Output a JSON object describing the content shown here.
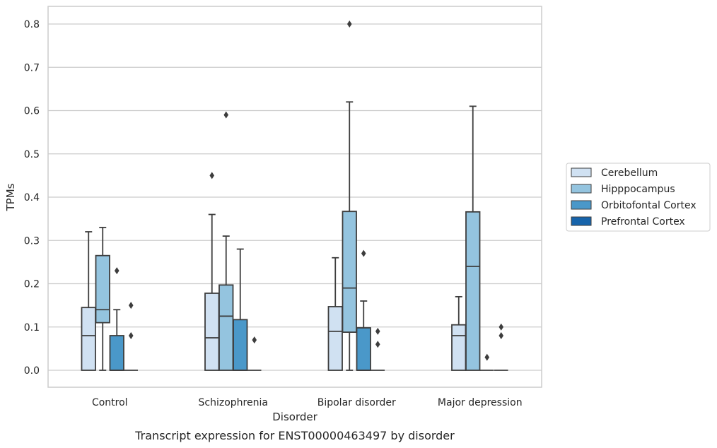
{
  "chart_data": {
    "type": "box",
    "title": "",
    "caption": "Transcript expression for ENST00000463497 by disorder",
    "xlabel": "Disorder",
    "ylabel": "TPMs",
    "ylim": [
      -0.04,
      0.84
    ],
    "yticks": [
      "0.0",
      "0.1",
      "0.2",
      "0.3",
      "0.4",
      "0.5",
      "0.6",
      "0.7",
      "0.8"
    ],
    "grid": "horizontal",
    "legend_position": "right",
    "categories": [
      "Control",
      "Schizophrenia",
      "Bipolar disorder",
      "Major depression"
    ],
    "series": [
      {
        "name": "Cerebellum",
        "color": "#d0e1f2",
        "boxes": [
          {
            "whisker_low": 0,
            "q1": 0,
            "median": 0.08,
            "q3": 0.145,
            "whisker_high": 0.32,
            "outliers": []
          },
          {
            "whisker_low": 0,
            "q1": 0,
            "median": 0.075,
            "q3": 0.178,
            "whisker_high": 0.36,
            "outliers": [
              0.45
            ]
          },
          {
            "whisker_low": 0,
            "q1": 0,
            "median": 0.09,
            "q3": 0.147,
            "whisker_high": 0.26,
            "outliers": []
          },
          {
            "whisker_low": 0,
            "q1": 0,
            "median": 0.08,
            "q3": 0.105,
            "whisker_high": 0.17,
            "outliers": []
          }
        ]
      },
      {
        "name": "Hipppocampus",
        "color": "#94c4df",
        "boxes": [
          {
            "whisker_low": 0,
            "q1": 0.11,
            "median": 0.14,
            "q3": 0.265,
            "whisker_high": 0.33,
            "outliers": []
          },
          {
            "whisker_low": 0,
            "q1": 0,
            "median": 0.125,
            "q3": 0.197,
            "whisker_high": 0.31,
            "outliers": [
              0.59
            ]
          },
          {
            "whisker_low": 0,
            "q1": 0.088,
            "median": 0.19,
            "q3": 0.367,
            "whisker_high": 0.62,
            "outliers": [
              0.8
            ]
          },
          {
            "whisker_low": 0,
            "q1": 0,
            "median": 0.24,
            "q3": 0.366,
            "whisker_high": 0.61,
            "outliers": []
          }
        ]
      },
      {
        "name": "Orbitofontal Cortex",
        "color": "#4a98c9",
        "boxes": [
          {
            "whisker_low": 0,
            "q1": 0,
            "median": 0,
            "q3": 0.08,
            "whisker_high": 0.14,
            "outliers": [
              0.23
            ]
          },
          {
            "whisker_low": 0,
            "q1": 0,
            "median": 0,
            "q3": 0.117,
            "whisker_high": 0.28,
            "outliers": []
          },
          {
            "whisker_low": 0,
            "q1": 0,
            "median": 0,
            "q3": 0.098,
            "whisker_high": 0.16,
            "outliers": [
              0.27
            ]
          },
          {
            "whisker_low": 0,
            "q1": 0,
            "median": 0,
            "q3": 0,
            "whisker_high": 0,
            "outliers": [
              0.03
            ]
          }
        ]
      },
      {
        "name": "Prefrontal Cortex",
        "color": "#1764ab",
        "boxes": [
          {
            "whisker_low": 0,
            "q1": 0,
            "median": 0,
            "q3": 0,
            "whisker_high": 0,
            "outliers": [
              0.08,
              0.15
            ]
          },
          {
            "whisker_low": 0,
            "q1": 0,
            "median": 0,
            "q3": 0,
            "whisker_high": 0,
            "outliers": [
              0.07
            ]
          },
          {
            "whisker_low": 0,
            "q1": 0,
            "median": 0,
            "q3": 0,
            "whisker_high": 0,
            "outliers": [
              0.06,
              0.09
            ]
          },
          {
            "whisker_low": 0,
            "q1": 0,
            "median": 0,
            "q3": 0,
            "whisker_high": 0,
            "outliers": [
              0.08,
              0.1
            ]
          }
        ]
      }
    ]
  }
}
